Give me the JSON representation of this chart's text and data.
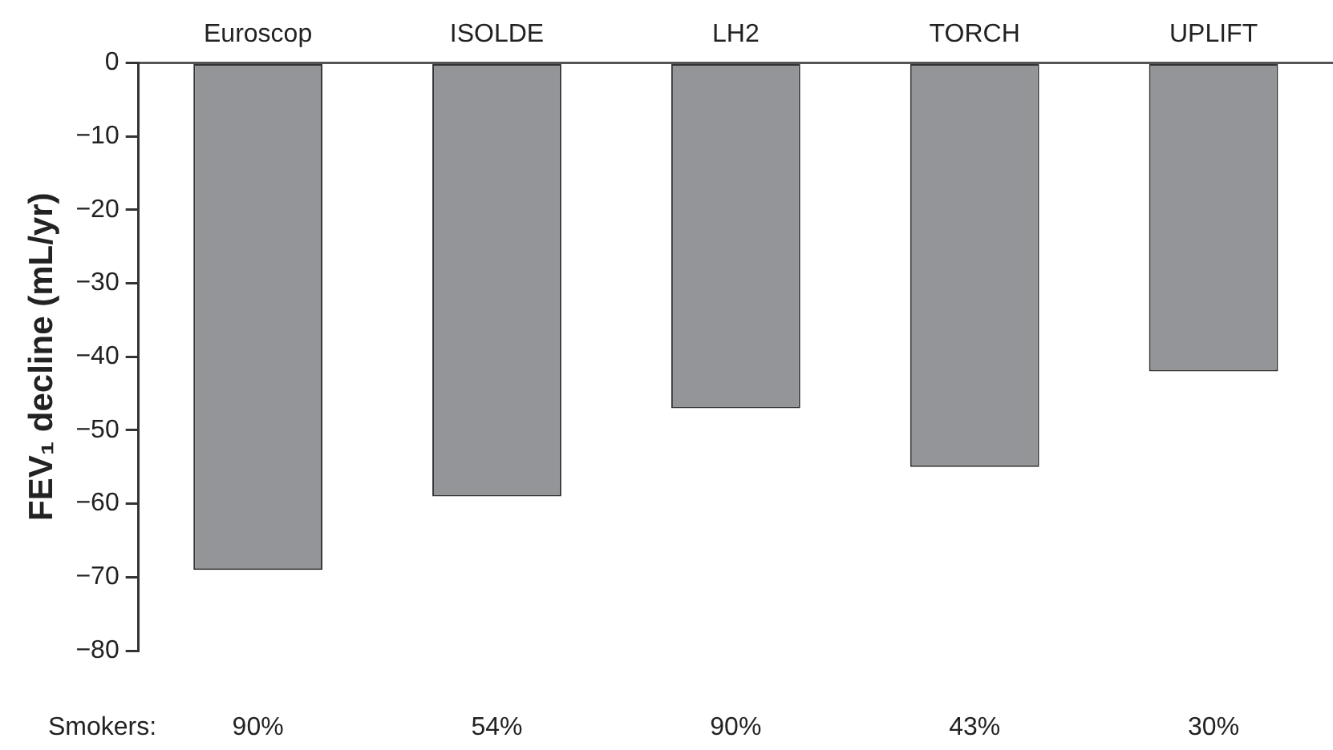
{
  "chart_data": {
    "type": "bar",
    "ylabel": "FEV₁ decline (mL/yr)",
    "categories": [
      "Euroscop",
      "ISOLDE",
      "LH2",
      "TORCH",
      "UPLIFT"
    ],
    "values": [
      -69,
      -59,
      -47,
      -55,
      -42
    ],
    "color": "#939598",
    "ylim": [
      -80,
      0
    ],
    "yticks": [
      0,
      -10,
      -20,
      -30,
      -40,
      -50,
      -60,
      -70,
      -80
    ],
    "grid": false,
    "legend": false,
    "annotations": [
      "Smokers:",
      "90%",
      "54%",
      "90%",
      "43%",
      "30%"
    ]
  }
}
